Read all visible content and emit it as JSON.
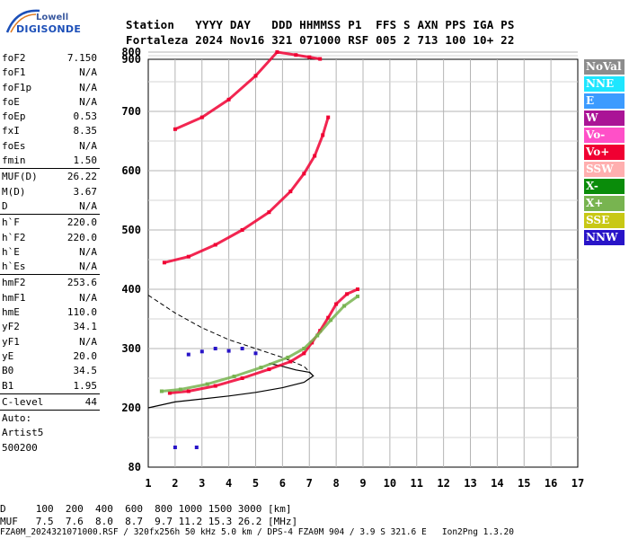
{
  "logo": {
    "line1": "Lowell",
    "line2": "DIGISONDE"
  },
  "header": {
    "row1": "Station   YYYY DAY   DDD HHMMSS P1  FFS S AXN PPS IGA PS",
    "row2": "Fortaleza 2024 Nov16 321 071000 RSF 005 2 713 100 10+ 22"
  },
  "params": {
    "group1": [
      {
        "label": "foF2",
        "value": "7.150"
      },
      {
        "label": "foF1",
        "value": "N/A"
      },
      {
        "label": "foF1p",
        "value": "N/A"
      },
      {
        "label": "foE",
        "value": "N/A"
      },
      {
        "label": "foEp",
        "value": "0.53"
      },
      {
        "label": "fxI",
        "value": "8.35"
      },
      {
        "label": "foEs",
        "value": "N/A"
      },
      {
        "label": "fmin",
        "value": "1.50"
      }
    ],
    "group2": [
      {
        "label": "MUF(D)",
        "value": "26.22"
      },
      {
        "label": "M(D)",
        "value": "3.67"
      },
      {
        "label": "D",
        "value": "N/A"
      }
    ],
    "group3": [
      {
        "label": "h`F",
        "value": "220.0"
      },
      {
        "label": "h`F2",
        "value": "220.0"
      },
      {
        "label": "h`E",
        "value": "N/A"
      },
      {
        "label": "h`Es",
        "value": "N/A"
      }
    ],
    "group4": [
      {
        "label": "hmF2",
        "value": "253.6"
      },
      {
        "label": "hmF1",
        "value": "N/A"
      },
      {
        "label": "hmE",
        "value": "110.0"
      },
      {
        "label": "yF2",
        "value": "34.1"
      },
      {
        "label": "yF1",
        "value": "N/A"
      },
      {
        "label": "yE",
        "value": "20.0"
      },
      {
        "label": "B0",
        "value": "34.5"
      },
      {
        "label": "B1",
        "value": "1.95"
      }
    ],
    "group5": [
      {
        "label": "C-level",
        "value": "44"
      }
    ],
    "auto": [
      "Auto:",
      "Artist5",
      "500200"
    ]
  },
  "legend": [
    {
      "label": "NoVal",
      "color": "#8c8c8c"
    },
    {
      "label": "NNE",
      "color": "#1ee6ff"
    },
    {
      "label": "E",
      "color": "#3c9bff"
    },
    {
      "label": "W",
      "color": "#aa1496"
    },
    {
      "label": "Vo-",
      "color": "#ff50c8"
    },
    {
      "label": "Vo+",
      "color": "#f00032"
    },
    {
      "label": "SSW",
      "color": "#ffafaf"
    },
    {
      "label": "X-",
      "color": "#0a8c0a"
    },
    {
      "label": "X+",
      "color": "#78b450"
    },
    {
      "label": "SSE",
      "color": "#c8c814"
    },
    {
      "label": "NNW",
      "color": "#2814c8"
    }
  ],
  "bottom": {
    "drow": "D     100  200  400  600  800 1000 1500 3000 [km]",
    "mufrow": "MUF   7.5  7.6  8.0  8.7  9.7 11.2 15.3 26.2 [MHz]",
    "footer": "FZA0M_2024321071000.RSF / 320fx256h 50 kHz 5.0 km / DPS-4 FZA0M 904 / 3.9 S 321.6 E   Ion2Png 1.3.20"
  },
  "chart_data": {
    "type": "scatter",
    "xlim": [
      1,
      17
    ],
    "ylim": [
      80,
      900
    ],
    "x_ticks": [
      1,
      2,
      3,
      4,
      5,
      6,
      7,
      8,
      9,
      10,
      11,
      12,
      13,
      14,
      15,
      16,
      17
    ],
    "y_ticks": [
      80,
      200,
      300,
      400,
      500,
      600,
      700,
      800,
      900
    ],
    "grid": true,
    "legend_position": "right",
    "traces": [
      {
        "series": "O-trace 1st hop",
        "color": "#f00032",
        "points": [
          [
            1.8,
            225
          ],
          [
            2.5,
            228
          ],
          [
            3.5,
            237
          ],
          [
            4.5,
            250
          ],
          [
            5.5,
            265
          ],
          [
            6.3,
            278
          ],
          [
            6.8,
            292
          ],
          [
            7.1,
            310
          ],
          [
            7.4,
            330
          ],
          [
            7.7,
            352
          ],
          [
            8.0,
            375
          ],
          [
            8.4,
            392
          ],
          [
            8.8,
            400
          ]
        ]
      },
      {
        "series": "X-trace 1st hop",
        "color": "#78b450",
        "points": [
          [
            1.5,
            228
          ],
          [
            2.2,
            231
          ],
          [
            3.2,
            240
          ],
          [
            4.2,
            253
          ],
          [
            5.2,
            268
          ],
          [
            6.2,
            285
          ],
          [
            6.8,
            300
          ],
          [
            7.3,
            322
          ],
          [
            7.8,
            348
          ],
          [
            8.3,
            372
          ],
          [
            8.8,
            388
          ]
        ]
      },
      {
        "series": "O-trace 2nd hop",
        "color": "#f00032",
        "points": [
          [
            1.6,
            445
          ],
          [
            2.5,
            455
          ],
          [
            3.5,
            475
          ],
          [
            4.5,
            500
          ],
          [
            5.5,
            530
          ],
          [
            6.3,
            565
          ],
          [
            6.8,
            595
          ],
          [
            7.2,
            625
          ],
          [
            7.5,
            660
          ],
          [
            7.7,
            690
          ]
        ]
      },
      {
        "series": "O-trace 3rd hop",
        "color": "#f00032",
        "points": [
          [
            2.0,
            670
          ],
          [
            3.0,
            690
          ],
          [
            4.0,
            720
          ],
          [
            5.0,
            760
          ],
          [
            5.8,
            800
          ],
          [
            6.5,
            840
          ],
          [
            7.0,
            870
          ],
          [
            7.4,
            895
          ]
        ]
      },
      {
        "series": "Es / W band",
        "color": "#2814c8",
        "points": [
          [
            2.5,
            290
          ],
          [
            3.0,
            295
          ],
          [
            3.5,
            300
          ],
          [
            4.0,
            296
          ],
          [
            4.5,
            300
          ],
          [
            5.0,
            292
          ],
          [
            2.0,
            120
          ],
          [
            2.8,
            120
          ]
        ]
      }
    ],
    "profile_solid": [
      [
        1,
        200
      ],
      [
        2,
        210
      ],
      [
        3,
        215
      ],
      [
        4,
        220
      ],
      [
        5,
        226
      ],
      [
        6,
        234
      ],
      [
        6.8,
        243
      ],
      [
        7.15,
        254
      ],
      [
        7.0,
        260
      ],
      [
        6.5,
        264
      ],
      [
        6.0,
        270
      ],
      [
        5.5,
        275
      ]
    ],
    "profile_dashed": [
      [
        1,
        390
      ],
      [
        2,
        360
      ],
      [
        3,
        335
      ],
      [
        4,
        315
      ],
      [
        5,
        300
      ],
      [
        6,
        285
      ],
      [
        6.8,
        270
      ],
      [
        7.15,
        254
      ]
    ]
  }
}
